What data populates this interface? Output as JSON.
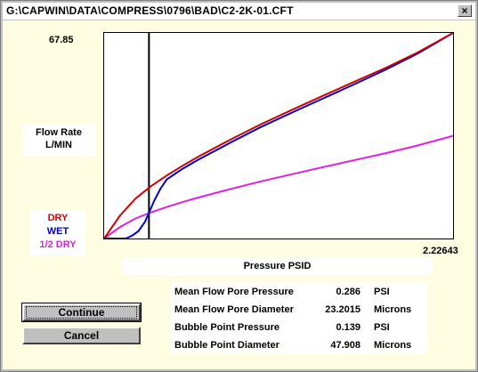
{
  "window": {
    "title": "G:\\CAPWIN\\DATA\\COMPRESS\\0796\\BAD\\C2-2K-01.CFT",
    "close_glyph": "×"
  },
  "chart": {
    "y_axis_label": "Flow Rate\nL/MIN",
    "y_max_label": "67.85",
    "x_max_label": "2.22643",
    "x_axis_label": "Pressure PSID"
  },
  "legend": {
    "dry": "DRY",
    "wet": "WET",
    "half_dry": "1/2 DRY",
    "colors": {
      "dry": "#d00000",
      "wet": "#0000d0",
      "half_dry": "#e020e0"
    }
  },
  "stats": [
    {
      "label": "Mean Flow Pore Pressure",
      "value": "0.286",
      "unit": "PSI"
    },
    {
      "label": "Mean Flow Pore Diameter",
      "value": "23.2015",
      "unit": "Microns"
    },
    {
      "label": "Bubble Point Pressure",
      "value": "0.139",
      "unit": "PSI"
    },
    {
      "label": "Bubble Point Diameter",
      "value": "47.908",
      "unit": "Microns"
    }
  ],
  "buttons": {
    "continue": "Continue",
    "cancel": "Cancel"
  },
  "chart_data": {
    "type": "line",
    "xlabel": "Pressure PSID",
    "ylabel": "Flow Rate L/MIN",
    "xlim": [
      0,
      2.22643
    ],
    "ylim": [
      0,
      67.85
    ],
    "series": [
      {
        "name": "DRY",
        "color": "#d00000",
        "x": [
          0,
          0.1,
          0.2,
          0.3,
          0.4,
          0.5,
          0.6,
          0.8,
          1.0,
          1.2,
          1.4,
          1.6,
          1.8,
          2.0,
          2.22643
        ],
        "y": [
          0,
          7.5,
          13.2,
          17.3,
          20.8,
          24.0,
          27.0,
          32.5,
          37.7,
          42.5,
          47.2,
          51.8,
          56.4,
          61.4,
          67.85
        ]
      },
      {
        "name": "WET",
        "color": "#0000d0",
        "x": [
          0,
          0.139,
          0.18,
          0.22,
          0.26,
          0.286,
          0.32,
          0.36,
          0.4,
          0.5,
          0.6,
          0.8,
          1.0,
          1.2,
          1.4,
          1.6,
          1.8,
          2.0,
          2.22643
        ],
        "y": [
          0,
          0,
          1.0,
          2.5,
          5.5,
          8.5,
          12.5,
          16.5,
          19.5,
          23.0,
          26.0,
          31.5,
          36.8,
          41.6,
          46.3,
          51.0,
          55.8,
          61.0,
          67.85
        ]
      },
      {
        "name": "1/2 DRY",
        "color": "#e020e0",
        "x": [
          0,
          0.1,
          0.2,
          0.3,
          0.4,
          0.5,
          0.6,
          0.8,
          1.0,
          1.2,
          1.4,
          1.6,
          1.8,
          2.0,
          2.22643
        ],
        "y": [
          0,
          3.75,
          6.6,
          8.65,
          10.4,
          12.0,
          13.5,
          16.25,
          18.85,
          21.25,
          23.6,
          25.9,
          28.2,
          30.7,
          33.9
        ]
      }
    ],
    "vertical_marker_x": 0.286
  }
}
